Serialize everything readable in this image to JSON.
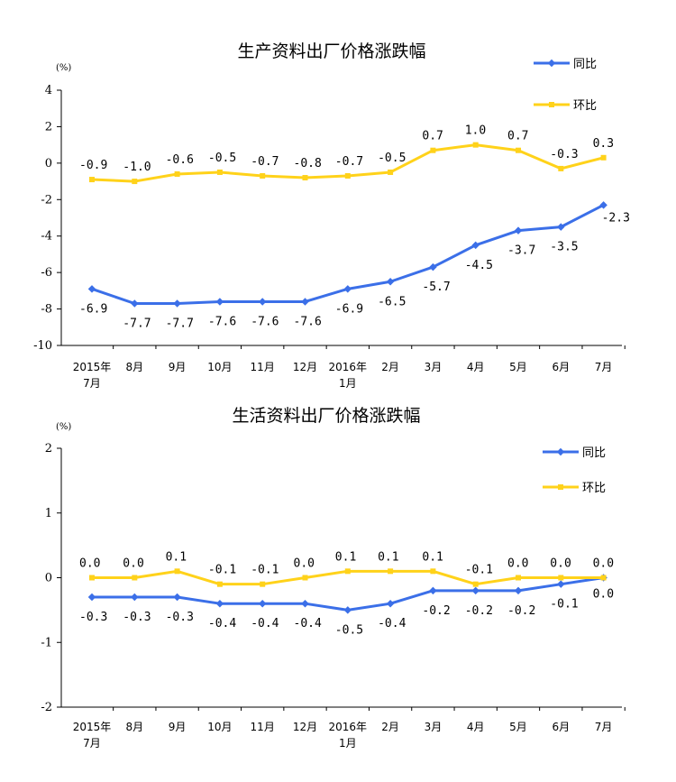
{
  "colors": {
    "yoy": "#3b6fe8",
    "mom": "#ffd21a",
    "axis": "#000000"
  },
  "chart_data": [
    {
      "type": "line",
      "title": "生产资料出厂价格涨跌幅",
      "unit": "(%)",
      "ylim": [
        -10,
        4
      ],
      "yticks": [
        4,
        2,
        0,
        -2,
        -4,
        -6,
        -8,
        -10
      ],
      "categories": [
        [
          "2015年",
          "7月"
        ],
        [
          "8月"
        ],
        [
          "9月"
        ],
        [
          "10月"
        ],
        [
          "11月"
        ],
        [
          "12月"
        ],
        [
          "2016年",
          "1月"
        ],
        [
          "2月"
        ],
        [
          "3月"
        ],
        [
          "4月"
        ],
        [
          "5月"
        ],
        [
          "6月"
        ],
        [
          "7月"
        ]
      ],
      "legend_placement": "top-right",
      "series": [
        {
          "name": "同比",
          "color_key": "yoy",
          "values": [
            -6.9,
            -7.7,
            -7.7,
            -7.6,
            -7.6,
            -7.6,
            -6.9,
            -6.5,
            -5.7,
            -4.5,
            -3.7,
            -3.5,
            -2.3
          ],
          "labels": [
            "-6.9",
            "-7.7",
            "-7.7",
            "-7.6",
            "-7.6",
            "-7.6",
            "-6.9",
            "-6.5",
            "-5.7",
            "-4.5",
            "-3.7",
            "-3.5",
            "-2.3"
          ]
        },
        {
          "name": "环比",
          "color_key": "mom",
          "values": [
            -0.9,
            -1.0,
            -0.6,
            -0.5,
            -0.7,
            -0.8,
            -0.7,
            -0.5,
            0.7,
            1.0,
            0.7,
            -0.3,
            0.3
          ],
          "labels": [
            "-0.9",
            "-1.0",
            "-0.6",
            "-0.5",
            "-0.7",
            "-0.8",
            "-0.7",
            "-0.5",
            "0.7",
            "1.0",
            "0.7",
            "-0.3",
            "0.3"
          ]
        }
      ]
    },
    {
      "type": "line",
      "title": "生活资料出厂价格涨跌幅",
      "unit": "(%)",
      "ylim": [
        -2,
        2
      ],
      "yticks": [
        2,
        1,
        0,
        -1,
        -2
      ],
      "categories": [
        [
          "2015年",
          "7月"
        ],
        [
          "8月"
        ],
        [
          "9月"
        ],
        [
          "10月"
        ],
        [
          "11月"
        ],
        [
          "12月"
        ],
        [
          "2016年",
          "1月"
        ],
        [
          "2月"
        ],
        [
          "3月"
        ],
        [
          "4月"
        ],
        [
          "5月"
        ],
        [
          "6月"
        ],
        [
          "7月"
        ]
      ],
      "legend_placement": "top-right",
      "series": [
        {
          "name": "同比",
          "color_key": "yoy",
          "values": [
            -0.3,
            -0.3,
            -0.3,
            -0.4,
            -0.4,
            -0.4,
            -0.5,
            -0.4,
            -0.2,
            -0.2,
            -0.2,
            -0.1,
            0.0
          ],
          "labels": [
            "-0.3",
            "-0.3",
            "-0.3",
            "-0.4",
            "-0.4",
            "-0.4",
            "-0.5",
            "-0.4",
            "-0.2",
            "-0.2",
            "-0.2",
            "-0.1",
            "0.0"
          ]
        },
        {
          "name": "环比",
          "color_key": "mom",
          "values": [
            0.0,
            0.0,
            0.1,
            -0.1,
            -0.1,
            0.0,
            0.1,
            0.1,
            0.1,
            -0.1,
            0.0,
            0.0,
            0.0
          ],
          "labels": [
            "0.0",
            "0.0",
            "0.1",
            "-0.1",
            "-0.1",
            "0.0",
            "0.1",
            "0.1",
            "0.1",
            "-0.1",
            "0.0",
            "0.0",
            "0.0"
          ]
        }
      ]
    }
  ]
}
